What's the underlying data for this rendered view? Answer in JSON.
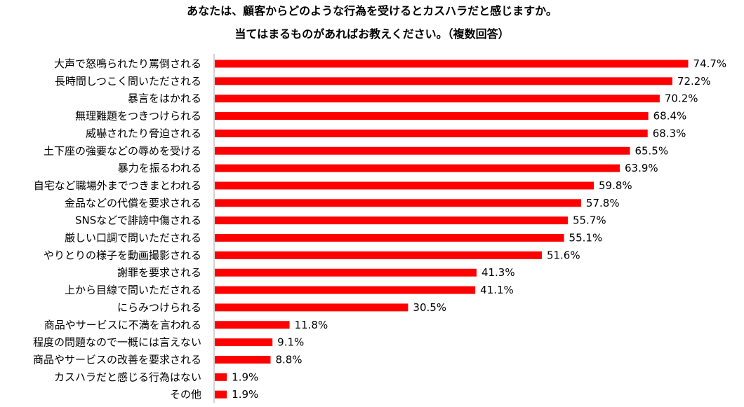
{
  "chart_data": {
    "type": "bar",
    "orientation": "horizontal",
    "title": "あなたは、顧客からどのような行為を受けるとカスハラだと感じますか。",
    "subtitle": "当てはまるものがあればお教えください。（複数回答）",
    "categories": [
      "大声で怒鳴られたり罵倒される",
      "長時間しつこく問いただされる",
      "暴言をはかれる",
      "無理難題をつきつけられる",
      "威嚇されたり脅迫される",
      "土下座の強要などの辱めを受ける",
      "暴力を振るわれる",
      "自宅など職場外までつきまとわれる",
      "金品などの代償を要求される",
      "SNSなどで誹謗中傷される",
      "厳しい口調で問いただされる",
      "やりとりの様子を動画撮影される",
      "謝罪を要求される",
      "上から目線で問いただされる",
      "にらみつけられる",
      "商品やサービスに不満を言われる",
      "程度の問題なので一概には言えない",
      "商品やサービスの改善を要求される",
      "カスハラだと感じる行為はない",
      "その他"
    ],
    "values": [
      74.7,
      72.2,
      70.2,
      68.4,
      68.3,
      65.5,
      63.9,
      59.8,
      57.8,
      55.7,
      55.1,
      51.6,
      41.3,
      41.1,
      30.5,
      11.8,
      9.1,
      8.8,
      1.9,
      1.9
    ],
    "value_labels": [
      "74.7%",
      "72.2%",
      "70.2%",
      "68.4%",
      "68.3%",
      "65.5%",
      "63.9%",
      "59.8%",
      "57.8%",
      "55.7%",
      "55.1%",
      "51.6%",
      "41.3%",
      "41.1%",
      "30.5%",
      "11.8%",
      "9.1%",
      "8.8%",
      "1.9%",
      "1.9%"
    ],
    "xlim": [
      0,
      100
    ],
    "unit": "%",
    "bar_color": "#ff0000",
    "grid": false,
    "legend": "none"
  }
}
